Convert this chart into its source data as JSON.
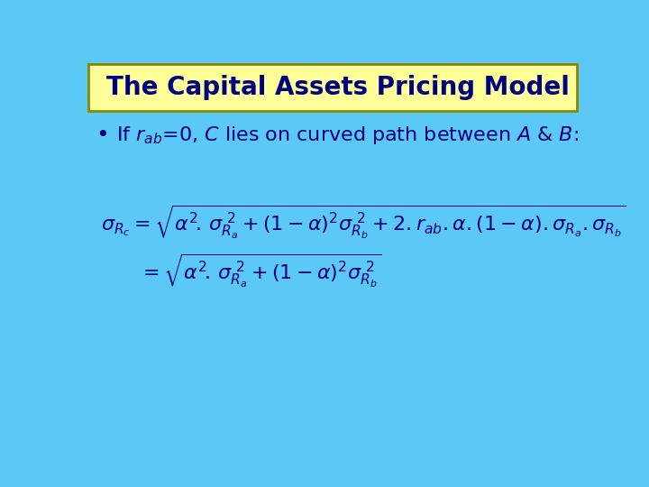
{
  "background_color": "#5BC8F5",
  "title_text": "The Capital Assets Pricing Model",
  "title_bg_color": "#FFFF99",
  "title_border_color": "#888800",
  "title_text_color": "#000080",
  "bullet_color": "#000080",
  "formula_color": "#000080",
  "fig_width": 7.2,
  "fig_height": 5.4,
  "dpi": 100,
  "title_fontsize": 20,
  "bullet_fontsize": 16,
  "formula_fontsize": 16
}
